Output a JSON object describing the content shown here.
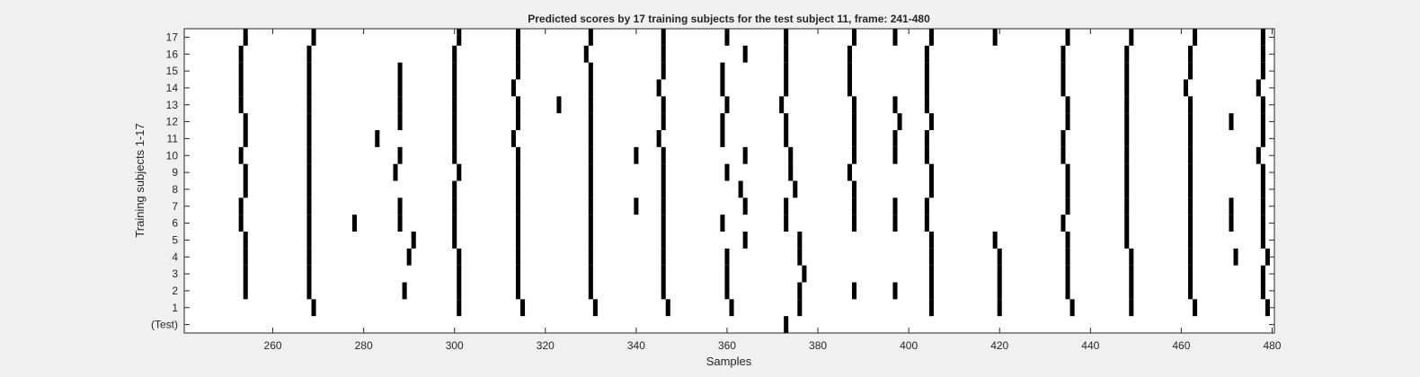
{
  "chart_data": {
    "type": "heatmap",
    "title": "Predicted scores by 17 training subjects for the test subject 11, frame: 241-480",
    "xlabel": "Samples",
    "ylabel": "Training subjects 1-17",
    "xlim": [
      241,
      480
    ],
    "x_ticks": [
      260,
      280,
      300,
      320,
      340,
      360,
      380,
      400,
      420,
      440,
      460,
      480
    ],
    "y_tick_labels": [
      "(Test)",
      "1",
      "2",
      "3",
      "4",
      "5",
      "6",
      "7",
      "8",
      "9",
      "10",
      "11",
      "12",
      "13",
      "14",
      "15",
      "16",
      "17"
    ],
    "grid": false,
    "colors": {
      "background": "#ffffff",
      "mark": "#000000",
      "figure": "#f0f0f0"
    },
    "rows": [
      {
        "label": "(Test)",
        "samples": [
          373
        ]
      },
      {
        "label": "1",
        "samples": [
          269,
          301,
          315,
          331,
          347,
          361,
          376,
          405,
          420,
          436,
          449,
          463,
          479
        ]
      },
      {
        "label": "2",
        "samples": [
          254,
          268,
          289,
          301,
          314,
          330,
          346,
          360,
          376,
          388,
          397,
          405,
          420,
          435,
          449,
          462,
          478
        ]
      },
      {
        "label": "3",
        "samples": [
          254,
          268,
          301,
          314,
          330,
          346,
          360,
          377,
          405,
          420,
          435,
          449,
          462,
          478
        ]
      },
      {
        "label": "4",
        "samples": [
          254,
          268,
          290,
          301,
          314,
          330,
          346,
          360,
          376,
          405,
          420,
          435,
          449,
          462,
          472,
          479
        ]
      },
      {
        "label": "5",
        "samples": [
          254,
          268,
          291,
          300,
          314,
          330,
          346,
          364,
          376,
          405,
          419,
          435,
          448,
          462,
          478
        ]
      },
      {
        "label": "6",
        "samples": [
          253,
          268,
          278,
          288,
          300,
          314,
          330,
          346,
          359,
          373,
          388,
          397,
          404,
          434,
          448,
          462,
          471,
          478
        ]
      },
      {
        "label": "7",
        "samples": [
          253,
          268,
          288,
          300,
          314,
          330,
          340,
          346,
          364,
          373,
          388,
          397,
          404,
          435,
          448,
          462,
          471,
          478
        ]
      },
      {
        "label": "8",
        "samples": [
          254,
          268,
          300,
          314,
          330,
          346,
          363,
          375,
          388,
          405,
          435,
          448,
          462,
          478
        ]
      },
      {
        "label": "9",
        "samples": [
          254,
          268,
          287,
          301,
          314,
          330,
          346,
          360,
          374,
          387,
          405,
          435,
          448,
          462,
          478
        ]
      },
      {
        "label": "10",
        "samples": [
          253,
          268,
          288,
          300,
          314,
          330,
          340,
          346,
          364,
          374,
          388,
          397,
          404,
          434,
          448,
          462,
          477
        ]
      },
      {
        "label": "11",
        "samples": [
          254,
          268,
          283,
          300,
          313,
          330,
          345,
          359,
          373,
          388,
          397,
          404,
          434,
          448,
          462,
          478
        ]
      },
      {
        "label": "12",
        "samples": [
          254,
          268,
          288,
          300,
          314,
          330,
          346,
          359,
          373,
          388,
          398,
          405,
          435,
          448,
          462,
          471,
          478
        ]
      },
      {
        "label": "13",
        "samples": [
          253,
          268,
          288,
          300,
          314,
          323,
          330,
          346,
          360,
          372,
          388,
          397,
          404,
          435,
          448,
          462,
          478
        ]
      },
      {
        "label": "14",
        "samples": [
          253,
          268,
          288,
          300,
          313,
          330,
          345,
          359,
          373,
          387,
          404,
          434,
          448,
          461,
          477
        ]
      },
      {
        "label": "15",
        "samples": [
          253,
          268,
          288,
          300,
          314,
          330,
          346,
          359,
          373,
          387,
          404,
          434,
          448,
          462,
          478
        ]
      },
      {
        "label": "16",
        "samples": [
          253,
          268,
          300,
          314,
          329,
          346,
          364,
          373,
          387,
          404,
          434,
          448,
          462,
          478
        ]
      },
      {
        "label": "17",
        "samples": [
          254,
          269,
          301,
          314,
          330,
          346,
          360,
          373,
          388,
          397,
          405,
          419,
          435,
          449,
          463,
          478
        ]
      }
    ]
  }
}
